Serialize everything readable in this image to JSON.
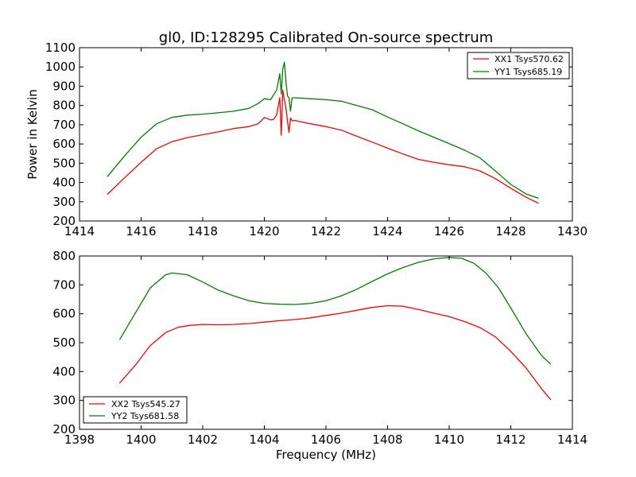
{
  "colors": {
    "xx": "#ff0000",
    "yy": "#008000"
  },
  "chart_data": [
    {
      "type": "line",
      "title": "gl0, ID:128295 Calibrated On-source spectrum",
      "xlabel": "",
      "ylabel": "Power in Kelvin",
      "xlim": [
        1414,
        1430
      ],
      "ylim": [
        200,
        1100
      ],
      "xticks": [
        "1414",
        "1416",
        "1418",
        "1420",
        "1422",
        "1424",
        "1426",
        "1428",
        "1430"
      ],
      "yticks": [
        "200",
        "300",
        "400",
        "500",
        "600",
        "700",
        "800",
        "900",
        "1000",
        "1100"
      ],
      "grid": false,
      "legend_position": "top-right",
      "series": [
        {
          "name": "XX1 Tsys570.62",
          "color": "#ff0000",
          "x": [
            1414.9,
            1415.5,
            1416.0,
            1416.5,
            1417.0,
            1417.5,
            1418.0,
            1418.5,
            1419.0,
            1419.5,
            1419.8,
            1419.9,
            1420.0,
            1420.2,
            1420.3,
            1420.4,
            1420.5,
            1420.55,
            1420.6,
            1420.65,
            1420.7,
            1420.75,
            1420.8,
            1420.85,
            1420.9,
            1421.0,
            1421.5,
            1422.0,
            1422.5,
            1423.0,
            1423.5,
            1424.0,
            1424.5,
            1425.0,
            1425.5,
            1426.0,
            1426.5,
            1427.0,
            1427.5,
            1428.0,
            1428.5,
            1428.9
          ],
          "y": [
            338,
            430,
            505,
            575,
            612,
            633,
            648,
            663,
            680,
            690,
            705,
            720,
            738,
            725,
            728,
            750,
            840,
            645,
            880,
            830,
            790,
            720,
            660,
            735,
            720,
            722,
            705,
            690,
            672,
            640,
            610,
            578,
            548,
            520,
            505,
            492,
            482,
            460,
            420,
            370,
            323,
            292
          ]
        },
        {
          "name": "YY1 Tsys685.19",
          "color": "#008000",
          "x": [
            1414.9,
            1415.5,
            1416.0,
            1416.5,
            1417.0,
            1417.5,
            1418.0,
            1418.5,
            1419.0,
            1419.5,
            1419.8,
            1420.0,
            1420.2,
            1420.4,
            1420.5,
            1420.55,
            1420.6,
            1420.65,
            1420.7,
            1420.75,
            1420.8,
            1420.85,
            1420.9,
            1421.0,
            1421.5,
            1422.0,
            1422.5,
            1423.0,
            1423.5,
            1424.0,
            1424.5,
            1425.0,
            1425.5,
            1426.0,
            1426.5,
            1427.0,
            1427.5,
            1428.0,
            1428.5,
            1428.9
          ],
          "y": [
            430,
            545,
            635,
            705,
            738,
            750,
            755,
            762,
            770,
            785,
            810,
            835,
            830,
            880,
            965,
            860,
            990,
            1025,
            930,
            850,
            840,
            770,
            840,
            840,
            835,
            830,
            822,
            800,
            778,
            740,
            705,
            668,
            635,
            602,
            568,
            528,
            460,
            390,
            340,
            318
          ]
        }
      ]
    },
    {
      "type": "line",
      "title": "",
      "xlabel": "Frequency (MHz)",
      "ylabel": "",
      "xlim": [
        1398,
        1414
      ],
      "ylim": [
        200,
        800
      ],
      "xticks": [
        "1398",
        "1400",
        "1402",
        "1404",
        "1406",
        "1408",
        "1410",
        "1412",
        "1414"
      ],
      "yticks": [
        "200",
        "300",
        "400",
        "500",
        "600",
        "700",
        "800"
      ],
      "grid": false,
      "legend_position": "bottom-left",
      "series": [
        {
          "name": "XX2 Tsys545.27",
          "color": "#ff0000",
          "x": [
            1399.3,
            1399.8,
            1400.3,
            1400.8,
            1401.2,
            1401.6,
            1402.0,
            1402.5,
            1403.0,
            1403.5,
            1404.0,
            1404.5,
            1405.0,
            1405.5,
            1406.0,
            1406.5,
            1407.0,
            1407.5,
            1408.0,
            1408.5,
            1409.0,
            1409.5,
            1410.0,
            1410.5,
            1411.0,
            1411.5,
            1412.0,
            1412.5,
            1413.0,
            1413.3
          ],
          "y": [
            360,
            420,
            490,
            535,
            553,
            560,
            563,
            562,
            563,
            566,
            571,
            576,
            580,
            586,
            594,
            602,
            612,
            622,
            628,
            626,
            615,
            602,
            590,
            573,
            552,
            520,
            470,
            412,
            340,
            302
          ]
        },
        {
          "name": "YY2 Tsys681.58",
          "color": "#008000",
          "x": [
            1399.3,
            1399.8,
            1400.3,
            1400.8,
            1401.0,
            1401.5,
            1402.0,
            1402.5,
            1403.0,
            1403.5,
            1404.0,
            1404.5,
            1405.0,
            1405.5,
            1406.0,
            1406.5,
            1407.0,
            1407.5,
            1408.0,
            1408.5,
            1409.0,
            1409.5,
            1410.0,
            1410.4,
            1410.8,
            1411.2,
            1411.6,
            1412.0,
            1412.5,
            1413.0,
            1413.3
          ],
          "y": [
            510,
            600,
            690,
            735,
            741,
            735,
            710,
            682,
            662,
            645,
            636,
            633,
            632,
            636,
            645,
            662,
            685,
            712,
            738,
            760,
            778,
            790,
            795,
            792,
            775,
            740,
            690,
            620,
            530,
            455,
            425
          ]
        }
      ]
    }
  ]
}
